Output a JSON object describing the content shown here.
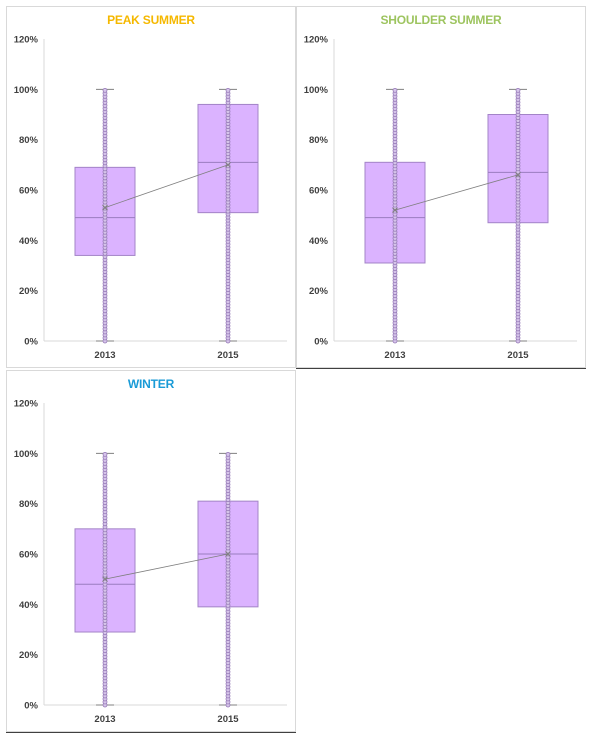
{
  "colors": {
    "box_fill": "#dbb3ff",
    "box_stroke": "#a384c7",
    "point_fill": "#d6c4ea",
    "point_stroke": "#9579b6"
  },
  "chart_data": [
    {
      "type": "box",
      "title": "PEAK SUMMER",
      "title_color": "#f5b800",
      "categories": [
        "2013",
        "2015"
      ],
      "y_ticks": [
        "0%",
        "20%",
        "40%",
        "60%",
        "80%",
        "100%",
        "120%"
      ],
      "ylim": [
        0,
        120
      ],
      "grid": false,
      "boxes": [
        {
          "category": "2013",
          "min": 0,
          "q1": 34,
          "median": 49,
          "q3": 69,
          "max": 100,
          "mean": 53
        },
        {
          "category": "2015",
          "min": 0,
          "q1": 51,
          "median": 71,
          "q3": 94,
          "max": 100,
          "mean": 70
        }
      ]
    },
    {
      "type": "box",
      "title": "SHOULDER SUMMER",
      "title_color": "#9dc45f",
      "categories": [
        "2013",
        "2015"
      ],
      "y_ticks": [
        "0%",
        "20%",
        "40%",
        "60%",
        "80%",
        "100%",
        "120%"
      ],
      "ylim": [
        0,
        120
      ],
      "grid": false,
      "boxes": [
        {
          "category": "2013",
          "min": 0,
          "q1": 31,
          "median": 49,
          "q3": 71,
          "max": 100,
          "mean": 52
        },
        {
          "category": "2015",
          "min": 0,
          "q1": 47,
          "median": 67,
          "q3": 90,
          "max": 100,
          "mean": 66
        }
      ]
    },
    {
      "type": "box",
      "title": "WINTER",
      "title_color": "#1a9bd7",
      "categories": [
        "2013",
        "2015"
      ],
      "y_ticks": [
        "0%",
        "20%",
        "40%",
        "60%",
        "80%",
        "100%",
        "120%"
      ],
      "ylim": [
        0,
        120
      ],
      "grid": false,
      "boxes": [
        {
          "category": "2013",
          "min": 0,
          "q1": 29,
          "median": 48,
          "q3": 70,
          "max": 100,
          "mean": 50
        },
        {
          "category": "2015",
          "min": 0,
          "q1": 39,
          "median": 60,
          "q3": 81,
          "max": 100,
          "mean": 60
        }
      ]
    }
  ]
}
